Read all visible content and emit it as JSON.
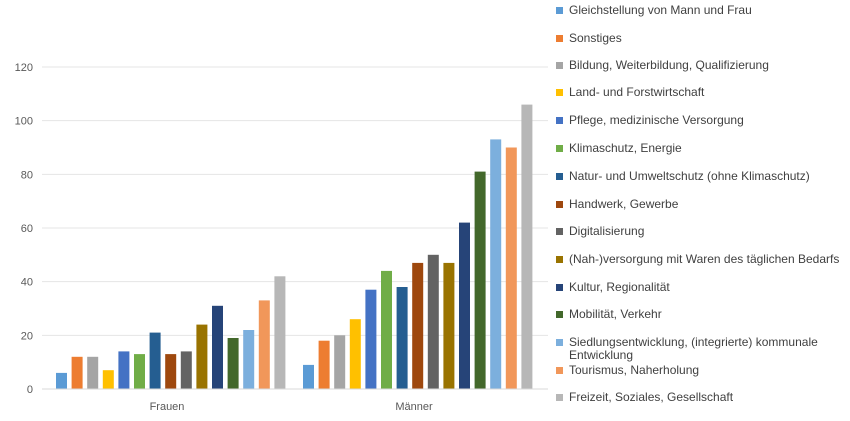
{
  "chart_data": {
    "type": "bar",
    "categories": [
      "Frauen",
      "Männer"
    ],
    "ylim": [
      0,
      120
    ],
    "yticks": [
      "0",
      "20",
      "40",
      "60",
      "80",
      "100",
      "120"
    ],
    "grid": true,
    "legend_position": "right",
    "series": [
      {
        "name": "Gleichstellung von Mann und Frau",
        "color": "#5b9bd5",
        "values": [
          6,
          9
        ]
      },
      {
        "name": "Sonstiges",
        "color": "#ed7d31",
        "values": [
          12,
          18
        ]
      },
      {
        "name": "Bildung, Weiterbildung, Qualifizierung",
        "color": "#a5a5a5",
        "values": [
          12,
          20
        ]
      },
      {
        "name": "Land- und Forstwirtschaft",
        "color": "#ffc000",
        "values": [
          7,
          26
        ]
      },
      {
        "name": "Pflege, medizinische Versorgung",
        "color": "#4472c4",
        "values": [
          14,
          37
        ]
      },
      {
        "name": "Klimaschutz, Energie",
        "color": "#70ad47",
        "values": [
          13,
          44
        ]
      },
      {
        "name": "Natur- und Umweltschutz (ohne Klimaschutz)",
        "color": "#255e91",
        "values": [
          21,
          38
        ]
      },
      {
        "name": "Handwerk, Gewerbe",
        "color": "#9e480e",
        "values": [
          13,
          47
        ]
      },
      {
        "name": "Digitalisierung",
        "color": "#636363",
        "values": [
          14,
          50
        ]
      },
      {
        "name": "(Nah-)versorgung mit Waren des täglichen Bedarfs",
        "color": "#997300",
        "values": [
          24,
          47
        ]
      },
      {
        "name": "Kultur, Regionalität",
        "color": "#264478",
        "values": [
          31,
          62
        ]
      },
      {
        "name": "Mobilität, Verkehr",
        "color": "#43682b",
        "values": [
          19,
          81
        ]
      },
      {
        "name": "Siedlungsentwicklung, (integrierte) kommunale Entwicklung",
        "color": "#7cafdd",
        "values": [
          22,
          93
        ]
      },
      {
        "name": "Tourismus, Naherholung",
        "color": "#f1975a",
        "values": [
          33,
          90
        ]
      },
      {
        "name": "Freizeit, Soziales, Gesellschaft",
        "color": "#b7b7b7",
        "values": [
          42,
          106
        ]
      }
    ]
  }
}
